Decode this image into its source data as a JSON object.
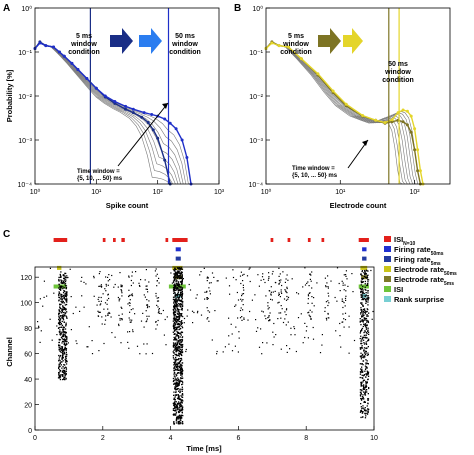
{
  "colors": {
    "blue": "#1f2fc8",
    "blue_dark": "#1a2e86",
    "blue_light": "#2b7df0",
    "olive": "#7d7424",
    "yellow": "#e4d52a",
    "gray": "#7a7a7a",
    "red": "#e3201b",
    "rate50": "#1f2fd0",
    "rate5": "#233aa0",
    "elec50": "#c9c419",
    "elec5": "#7d7a28",
    "isi": "#6ec43a",
    "rank": "#78cfd3"
  },
  "panels": {
    "A": "A",
    "B": "B",
    "C": "C"
  },
  "annotations": {
    "a_left_1": "5 ms",
    "a_left_2": "window",
    "a_left_3": "condition",
    "a_right_1": "50 ms",
    "a_right_2": "window",
    "a_right_3": "condition",
    "tw_a_1": "Time window =",
    "tw_a_2": "{5, 10, ... 50} ms",
    "b_left_1": "5 ms",
    "b_left_2": "window",
    "b_left_3": "condition",
    "b_right_1": "50 ms",
    "b_right_2": "window",
    "b_right_3": "condition",
    "tw_b_1": "Time window =",
    "tw_b_2": "{5, 10, ... 50} ms"
  },
  "chart_data": [
    {
      "panel": "A",
      "type": "line",
      "xscale": "log",
      "yscale": "log",
      "xlabel": "Spike count",
      "ylabel": "Probability [%]",
      "xlim": [
        1,
        1000
      ],
      "ylim": [
        0.0001,
        1
      ],
      "xticks": [
        "10⁰",
        "10¹",
        "10²",
        "10³"
      ],
      "yticks": [
        "10⁰",
        "10⁻¹",
        "10⁻²",
        "10⁻³",
        "10⁻⁴"
      ],
      "vlines": [
        8,
        150
      ],
      "series": [
        {
          "role": "5ms",
          "color": "#1a2e86",
          "x": [
            1,
            1.2,
            1.5,
            2,
            2.5,
            3,
            4,
            5,
            7,
            10,
            14,
            20,
            30,
            40,
            55,
            70,
            85,
            100,
            130,
            160
          ],
          "y": [
            0.12,
            0.17,
            0.14,
            0.13,
            0.1,
            0.08,
            0.055,
            0.04,
            0.025,
            0.015,
            0.0095,
            0.0068,
            0.005,
            0.0042,
            0.0033,
            0.0025,
            0.0017,
            0.0011,
            0.00035,
            0.0001
          ]
        },
        {
          "role": "50ms",
          "color": "#1f2fc8",
          "x": [
            1,
            1.2,
            1.5,
            2,
            2.5,
            3,
            4,
            5,
            7,
            10,
            14,
            20,
            30,
            40,
            60,
            80,
            100,
            130,
            160,
            200,
            250,
            300,
            350
          ],
          "y": [
            0.12,
            0.16,
            0.14,
            0.13,
            0.1,
            0.08,
            0.055,
            0.04,
            0.025,
            0.015,
            0.01,
            0.0075,
            0.0058,
            0.005,
            0.0042,
            0.0038,
            0.0035,
            0.003,
            0.0024,
            0.0018,
            0.001,
            0.0004,
            0.0001
          ]
        }
      ]
    },
    {
      "panel": "B",
      "type": "line",
      "xscale": "log",
      "yscale": "log",
      "xlabel": "Electrode count",
      "xlim": [
        1,
        300
      ],
      "ylim": [
        0.0001,
        1
      ],
      "xticks": [
        "10⁰",
        "10¹",
        "10²"
      ],
      "yticks": [
        "10⁰",
        "10⁻¹",
        "10⁻²",
        "10⁻³",
        "10⁻⁴"
      ],
      "vlines": [
        45,
        62
      ],
      "series": [
        {
          "role": "5ms",
          "color": "#7d7424",
          "x": [
            1,
            1.2,
            1.5,
            2,
            3,
            5,
            8,
            12,
            20,
            30,
            40,
            50,
            60,
            70,
            80,
            90,
            100,
            110,
            120
          ],
          "y": [
            0.12,
            0.17,
            0.14,
            0.13,
            0.07,
            0.03,
            0.012,
            0.006,
            0.0035,
            0.0028,
            0.0024,
            0.0026,
            0.0028,
            0.0026,
            0.0022,
            0.0015,
            0.0006,
            0.0002,
            0.0001
          ]
        },
        {
          "role": "50ms",
          "color": "#e4d52a",
          "x": [
            1,
            1.2,
            1.5,
            2,
            3,
            5,
            8,
            12,
            20,
            30,
            40,
            50,
            60,
            70,
            80,
            90,
            100,
            110,
            120,
            130
          ],
          "y": [
            0.12,
            0.16,
            0.14,
            0.13,
            0.07,
            0.032,
            0.013,
            0.0065,
            0.0036,
            0.0028,
            0.0025,
            0.0029,
            0.0042,
            0.0048,
            0.0045,
            0.0035,
            0.0018,
            0.0006,
            0.0002,
            0.0001
          ]
        }
      ]
    },
    {
      "panel": "C",
      "type": "scatter",
      "xlabel": "Time [ms]",
      "ylabel": "Channel",
      "xlim": [
        0,
        10
      ],
      "ylim": [
        0,
        128
      ],
      "xticks": [
        "0",
        "2",
        "4",
        "6",
        "8",
        "10"
      ],
      "yticks": [
        "0",
        "20",
        "40",
        "60",
        "80",
        "100",
        "120"
      ],
      "bursts": [
        {
          "t": 0.8,
          "lo": 40,
          "hi": 125
        },
        {
          "t": 4.2,
          "lo": 5,
          "hi": 128
        },
        {
          "t": 9.7,
          "lo": 10,
          "hi": 126
        }
      ],
      "legend": [
        {
          "label": "ISI",
          "sub": "N=10",
          "color": "#e3201b"
        },
        {
          "label": "Firing rate",
          "sub": "50ms",
          "color": "#1f2fd0"
        },
        {
          "label": "Firing rate",
          "sub": "5ms",
          "color": "#233aa0"
        },
        {
          "label": "Electrode rate",
          "sub": "50ms",
          "color": "#c9c419"
        },
        {
          "label": "Electrode rate",
          "sub": "5ms",
          "color": "#7d7a28"
        },
        {
          "label": "ISI",
          "sub": "",
          "color": "#6ec43a"
        },
        {
          "label": "Rank surprise",
          "sub": "",
          "color": "#78cfd3"
        }
      ],
      "detections": [
        {
          "row": 0,
          "color": "#e3201b",
          "segments": [
            [
              0.55,
              0.95
            ],
            [
              2.0,
              2.08
            ],
            [
              2.3,
              2.38
            ],
            [
              2.55,
              2.65
            ],
            [
              3.85,
              3.93
            ],
            [
              4.05,
              4.5
            ],
            [
              6.95,
              7.03
            ],
            [
              7.45,
              7.53
            ],
            [
              8.05,
              8.13
            ],
            [
              8.45,
              8.53
            ],
            [
              9.55,
              9.85
            ]
          ]
        },
        {
          "row": 1,
          "color": "#1f2fd0",
          "segments": [
            [
              4.15,
              4.3
            ],
            [
              9.65,
              9.78
            ]
          ]
        },
        {
          "row": 2,
          "color": "#233aa0",
          "segments": [
            [
              4.15,
              4.3
            ],
            [
              9.65,
              9.78
            ]
          ]
        },
        {
          "row": 3,
          "color": "#c9c419",
          "segments": [
            [
              0.65,
              0.78
            ],
            [
              4.05,
              4.35
            ],
            [
              9.6,
              9.8
            ]
          ]
        },
        {
          "row": 4,
          "color": "#7d7a28",
          "segments": [
            [
              4.1,
              4.35
            ],
            [
              9.62,
              9.8
            ]
          ]
        },
        {
          "row": 5,
          "color": "#6ec43a",
          "segments": [
            [
              0.55,
              0.92
            ],
            [
              3.95,
              4.45
            ],
            [
              9.55,
              9.85
            ]
          ]
        },
        {
          "row": 6,
          "color": "#78cfd3",
          "segments": [
            [
              4.12,
              4.3
            ],
            [
              9.65,
              9.78
            ]
          ]
        }
      ]
    }
  ]
}
